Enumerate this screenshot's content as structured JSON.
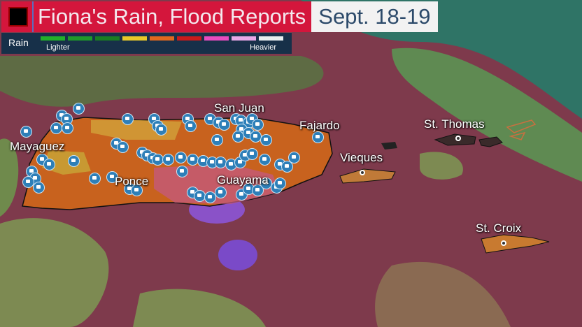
{
  "header": {
    "title": "Fiona's Rain, Flood Reports",
    "date": "Sept. 18-19"
  },
  "legend": {
    "label": "Rain",
    "low_label": "Lighter",
    "high_label": "Heavier",
    "colors": [
      "#22b02a",
      "#1f9a2a",
      "#1a7d22",
      "#e8c829",
      "#e0681e",
      "#c81b1b",
      "#e84cc0",
      "#e8a8e8",
      "#e8eef0"
    ]
  },
  "places": {
    "san_juan": "San Juan",
    "fajardo": "Fajardo",
    "mayaguez": "Mayaguez",
    "ponce": "Ponce",
    "guayama": "Guayama",
    "vieques": "Vieques",
    "st_thomas": "St. Thomas",
    "st_croix": "St. Croix"
  },
  "marker_icon": "flood-report-icon",
  "colors": {
    "marker": "#2e7fb8",
    "ocean_rain": "#7e3a4c",
    "light_rain": "#6f8a4c",
    "heavy_rain": "#7a4ac8"
  }
}
